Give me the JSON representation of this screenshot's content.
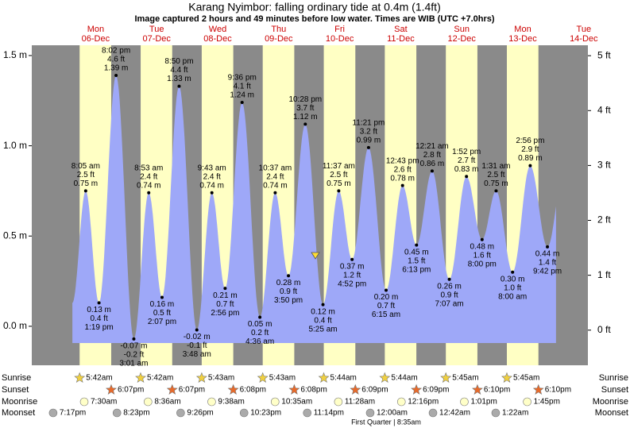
{
  "header": {
    "title": "Karang Nyimbor: falling  ordinary tide at 0.4m (1.4ft)",
    "subtitle": "Image captured 2 hours and 49 minutes before low water. Times are WIB (UTC +7.0hrs)"
  },
  "left_axis": {
    "ylim": [
      -0.216,
      1.557
    ],
    "ticks": [
      {
        "value": 0,
        "label": "0.0 m"
      },
      {
        "value": 0.5,
        "label": "0.5 m"
      },
      {
        "value": 1,
        "label": "1.0 m"
      },
      {
        "value": 1.5,
        "label": "1.5 m"
      }
    ]
  },
  "right_axis": {
    "ylim": [
      -0.64,
      5.19
    ],
    "ticks": [
      {
        "value": 0,
        "label": "0 ft"
      },
      {
        "value": 1,
        "label": "1 ft"
      },
      {
        "value": 2,
        "label": "2 ft"
      },
      {
        "value": 3,
        "label": "3 ft"
      },
      {
        "value": 4,
        "label": "4 ft"
      },
      {
        "value": 5,
        "label": "5 ft"
      }
    ]
  },
  "row_labels": [
    "Sunrise",
    "Sunset",
    "Moonrise",
    "Moonset"
  ],
  "prior_moonset": "7:17pm",
  "days": [
    {
      "name": "Mon",
      "date": "06-Dec",
      "sunrise": "5:42am",
      "sunset": "6:07pm",
      "moonrise": "7:30am",
      "moonset": "8:23pm",
      "tides": [
        {
          "time": "8:05 am",
          "m": 0.75,
          "m_label": "0.75 m",
          "ft": 2.5,
          "ft_label": "2.5 ft"
        },
        {
          "time": "1:19 pm",
          "m": 0.13,
          "m_label": "0.13 m",
          "ft": 0.4,
          "ft_label": "0.4 ft"
        },
        {
          "time": "8:02 pm",
          "m": 1.39,
          "m_label": "1.39 m",
          "ft": 4.6,
          "ft_label": "4.6 ft"
        }
      ]
    },
    {
      "name": "Tue",
      "date": "07-Dec",
      "sunrise": "5:42am",
      "sunset": "6:07pm",
      "moonrise": "8:36am",
      "moonset": "9:26pm",
      "tides": [
        {
          "time": "3:01 am",
          "m": -0.07,
          "m_label": "-0.07 m",
          "ft": -0.2,
          "ft_label": "-0.2 ft"
        },
        {
          "time": "8:53 am",
          "m": 0.74,
          "m_label": "0.74 m",
          "ft": 2.4,
          "ft_label": "2.4 ft"
        },
        {
          "time": "2:07 pm",
          "m": 0.16,
          "m_label": "0.16 m",
          "ft": 0.5,
          "ft_label": "0.5 ft"
        },
        {
          "time": "8:50 pm",
          "m": 1.33,
          "m_label": "1.33 m",
          "ft": 4.4,
          "ft_label": "4.4 ft"
        }
      ]
    },
    {
      "name": "Wed",
      "date": "08-Dec",
      "sunrise": "5:43am",
      "sunset": "6:08pm",
      "moonrise": "9:38am",
      "moonset": "10:23pm",
      "tides": [
        {
          "time": "3:48 am",
          "m": -0.02,
          "m_label": "-0.02 m",
          "ft": -0.1,
          "ft_label": "-0.1 ft"
        },
        {
          "time": "9:43 am",
          "m": 0.74,
          "m_label": "0.74 m",
          "ft": 2.4,
          "ft_label": "2.4 ft"
        },
        {
          "time": "2:56 pm",
          "m": 0.21,
          "m_label": "0.21 m",
          "ft": 0.7,
          "ft_label": "0.7 ft"
        },
        {
          "time": "9:36 pm",
          "m": 1.24,
          "m_label": "1.24 m",
          "ft": 4.1,
          "ft_label": "4.1 ft"
        }
      ]
    },
    {
      "name": "Thu",
      "date": "09-Dec",
      "sunrise": "5:43am",
      "sunset": "6:08pm",
      "moonrise": "10:35am",
      "moonset": "11:14pm",
      "tides": [
        {
          "time": "4:36 am",
          "m": 0.05,
          "m_label": "0.05 m",
          "ft": 0.2,
          "ft_label": "0.2 ft"
        },
        {
          "time": "10:37 am",
          "m": 0.74,
          "m_label": "0.74 m",
          "ft": 2.4,
          "ft_label": "2.4 ft"
        },
        {
          "time": "3:50 pm",
          "m": 0.28,
          "m_label": "0.28 m",
          "ft": 0.9,
          "ft_label": "0.9 ft"
        },
        {
          "time": "10:28 pm",
          "m": 1.12,
          "m_label": "1.12 m",
          "ft": 3.7,
          "ft_label": "3.7 ft"
        }
      ]
    },
    {
      "name": "Fri",
      "date": "10-Dec",
      "sunrise": "5:44am",
      "sunset": "6:09pm",
      "moonrise": "11:28am",
      "moonset": null,
      "tides": [
        {
          "time": "5:25 am",
          "m": 0.12,
          "m_label": "0.12 m",
          "ft": 0.4,
          "ft_label": "0.4 ft"
        },
        {
          "time": "11:37 am",
          "m": 0.75,
          "m_label": "0.75 m",
          "ft": 2.5,
          "ft_label": "2.5 ft"
        },
        {
          "time": "4:52 pm",
          "m": 0.37,
          "m_label": "0.37 m",
          "ft": 1.2,
          "ft_label": "1.2 ft"
        },
        {
          "time": "11:21 pm",
          "m": 0.99,
          "m_label": "0.99 m",
          "ft": 3.2,
          "ft_label": "3.2 ft"
        }
      ]
    },
    {
      "name": "Sat",
      "date": "11-Dec",
      "sunrise": "5:44am",
      "sunset": "6:09pm",
      "moonrise": "12:16pm",
      "moonset": "12:00am",
      "moon_phase": "First Quarter | 8:35am",
      "tides": [
        {
          "time": "6:15 am",
          "m": 0.2,
          "m_label": "0.20 m",
          "ft": 0.7,
          "ft_label": "0.7 ft"
        },
        {
          "time": "12:43 pm",
          "m": 0.78,
          "m_label": "0.78 m",
          "ft": 2.6,
          "ft_label": "2.6 ft"
        },
        {
          "time": "6:13 pm",
          "m": 0.45,
          "m_label": "0.45 m",
          "ft": 1.5,
          "ft_label": "1.5 ft"
        }
      ]
    },
    {
      "name": "Sun",
      "date": "12-Dec",
      "sunrise": "5:45am",
      "sunset": "6:10pm",
      "moonrise": "1:01pm",
      "moonset": "12:42am",
      "tides": [
        {
          "time": "12:21 am",
          "m": 0.86,
          "m_label": "0.86 m",
          "ft": 2.8,
          "ft_label": "2.8 ft"
        },
        {
          "time": "7:07 am",
          "m": 0.26,
          "m_label": "0.26 m",
          "ft": 0.9,
          "ft_label": "0.9 ft"
        },
        {
          "time": "1:52 pm",
          "m": 0.83,
          "m_label": "0.83 m",
          "ft": 2.7,
          "ft_label": "2.7 ft"
        },
        {
          "time": "8:00 pm",
          "m": 0.48,
          "m_label": "0.48 m",
          "ft": 1.6,
          "ft_label": "1.6 ft"
        }
      ]
    },
    {
      "name": "Mon",
      "date": "13-Dec",
      "sunrise": "5:45am",
      "sunset": "6:10pm",
      "moonrise": "1:45pm",
      "moonset": "1:22am",
      "tides": [
        {
          "time": "1:31 am",
          "m": 0.75,
          "m_label": "0.75 m",
          "ft": 2.5,
          "ft_label": "2.5 ft"
        },
        {
          "time": "8:00 am",
          "m": 0.3,
          "m_label": "0.30 m",
          "ft": 1.0,
          "ft_label": "1.0 ft"
        },
        {
          "time": "2:56 pm",
          "m": 0.89,
          "m_label": "0.89 m",
          "ft": 2.9,
          "ft_label": "2.9 ft"
        },
        {
          "time": "9:42 pm",
          "m": 0.44,
          "m_label": "0.44 m",
          "ft": 1.4,
          "ft_label": "1.4 ft"
        }
      ]
    },
    {
      "name": "Tue",
      "date": "14-Dec",
      "tides": []
    }
  ]
}
